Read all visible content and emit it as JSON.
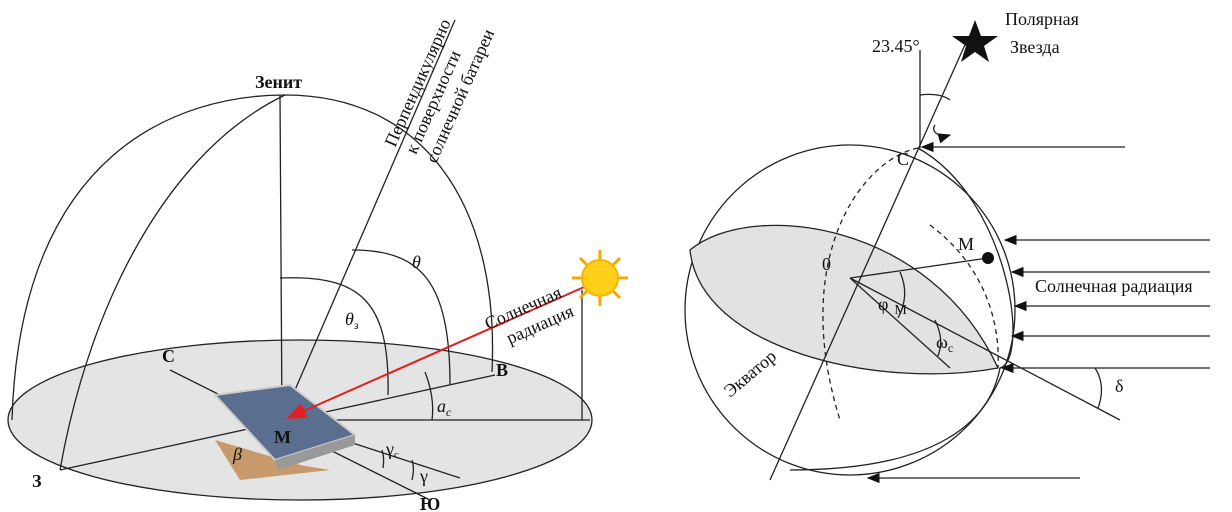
{
  "left": {
    "zenith": "Зенит",
    "normal": [
      "Перпендикулярно",
      "к поверхности",
      "солнечной батареи"
    ],
    "theta": "θ",
    "theta_z": {
      "symbol": "θ",
      "subscript": "з"
    },
    "radiation": [
      "Солнечная",
      "радиация"
    ],
    "north": "С",
    "east": "В",
    "west": "З",
    "south": "Ю",
    "point": "М",
    "altitude": {
      "symbol": "a",
      "subscript": "с"
    },
    "tilt": "β",
    "sun_azimuth": {
      "symbol": "γ",
      "subscript": "с"
    },
    "azimuth": "γ"
  },
  "right": {
    "star": [
      "Полярная",
      "Звезда"
    ],
    "angle": "23.45°",
    "north": "С",
    "point": "М",
    "center": "0",
    "latitude": {
      "symbol": "φ",
      "subscript": "М"
    },
    "hour": {
      "symbol": "ω",
      "subscript": "с"
    },
    "equator": "Экватор",
    "radiation": "Солнечная радиация",
    "declination": "δ"
  }
}
